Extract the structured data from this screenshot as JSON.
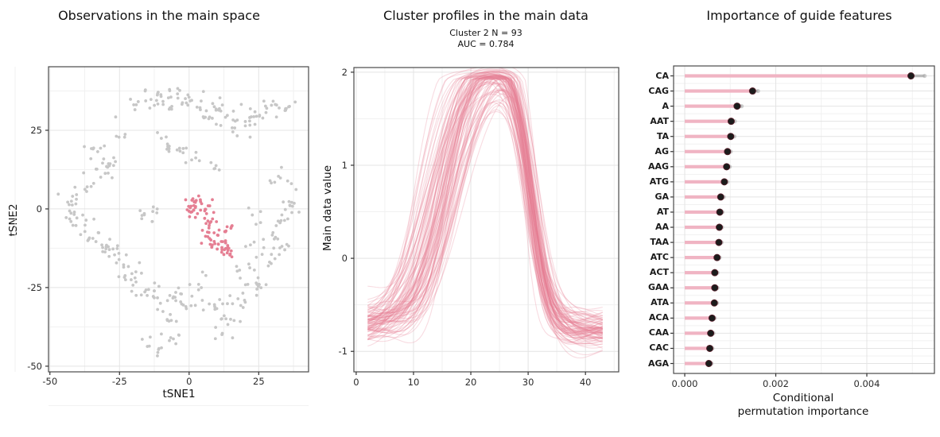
{
  "figure": {
    "background": "#ffffff",
    "accent_pink": "#e57f93",
    "muted_gray": "#c7c7c7",
    "grid_major": "#e4e4e4",
    "grid_minor": "#f1f1f1",
    "panel_border": "#4a4a4a",
    "dot_black": "#1c1c1c",
    "whisker_gray": "#a8a8a8",
    "bar_pink": "#f0b4c3"
  },
  "chart_data": [
    {
      "type": "scatter",
      "title": "Observations in the main space",
      "xlabel": "tSNE1",
      "ylabel": "tSNE2",
      "xlim": [
        -50.5,
        42.9
      ],
      "ylim": [
        -51.8,
        45.2
      ],
      "xticks": [
        -50,
        -25,
        0,
        25
      ],
      "yticks": [
        25,
        0,
        -25,
        -50
      ],
      "grid": "major+minor",
      "seed": 7,
      "n_highlight": 93,
      "point_color_base": "#c7c7c7",
      "point_color_highlight": "#e57f93",
      "base_clusters": [
        [
          -18,
          33,
          2.0,
          1.2,
          8
        ],
        [
          -13,
          36,
          2.2,
          1.3,
          10
        ],
        [
          -8,
          33,
          1.8,
          1.6,
          8
        ],
        [
          -4,
          37,
          2.0,
          1.4,
          8
        ],
        [
          1,
          34,
          2.2,
          1.8,
          10
        ],
        [
          6,
          30,
          2.2,
          2.0,
          10
        ],
        [
          11,
          32,
          2.2,
          1.8,
          10
        ],
        [
          16,
          29,
          2.2,
          2.0,
          10
        ],
        [
          21,
          27,
          2.0,
          2.0,
          8
        ],
        [
          26,
          30,
          2.2,
          1.6,
          9
        ],
        [
          31,
          33,
          2.4,
          1.2,
          9
        ],
        [
          36,
          32,
          1.8,
          1.4,
          7
        ],
        [
          -25,
          24,
          1.6,
          1.6,
          5
        ],
        [
          -8,
          22,
          1.8,
          1.6,
          6
        ],
        [
          -3,
          19,
          2.0,
          1.8,
          8
        ],
        [
          2,
          16,
          1.6,
          1.6,
          6
        ],
        [
          9,
          13,
          1.6,
          1.4,
          5
        ],
        [
          -33,
          18,
          2.2,
          2.2,
          11
        ],
        [
          -28,
          13,
          2.2,
          2.2,
          10
        ],
        [
          -34,
          9,
          1.8,
          1.8,
          7
        ],
        [
          -44,
          0,
          1.8,
          2.0,
          9
        ],
        [
          -40,
          -4,
          2.2,
          2.2,
          10
        ],
        [
          -36,
          -8,
          2.2,
          2.2,
          10
        ],
        [
          -31,
          -11,
          2.0,
          2.0,
          9
        ],
        [
          -39,
          4,
          1.6,
          1.6,
          6
        ],
        [
          -15,
          -1,
          1.8,
          2.2,
          11
        ],
        [
          -27,
          -14,
          2.0,
          2.0,
          9
        ],
        [
          -23,
          -18,
          2.0,
          2.0,
          9
        ],
        [
          -19,
          -22,
          2.0,
          2.0,
          9
        ],
        [
          -15,
          -26,
          2.0,
          2.0,
          8
        ],
        [
          -10,
          -29,
          2.2,
          2.2,
          10
        ],
        [
          -5,
          -27,
          1.8,
          1.8,
          7
        ],
        [
          -8,
          -34,
          1.8,
          1.8,
          7
        ],
        [
          -12,
          -43,
          2.2,
          1.8,
          10
        ],
        [
          -6,
          -42,
          1.6,
          1.6,
          6
        ],
        [
          0,
          -30,
          1.8,
          2.2,
          8
        ],
        [
          4,
          -25,
          1.8,
          1.8,
          7
        ],
        [
          9,
          -31,
          2.2,
          2.2,
          9
        ],
        [
          14,
          -35,
          1.8,
          1.8,
          7
        ],
        [
          11,
          -40,
          1.6,
          1.4,
          5
        ],
        [
          18,
          -29,
          2.2,
          1.8,
          9
        ],
        [
          23,
          -26,
          1.8,
          1.8,
          7
        ],
        [
          20,
          -19,
          1.8,
          1.8,
          7
        ],
        [
          26,
          -22,
          1.6,
          1.6,
          5
        ],
        [
          29,
          -16,
          1.8,
          1.8,
          7
        ],
        [
          34,
          -12,
          1.8,
          1.8,
          7
        ],
        [
          30,
          -8,
          1.8,
          1.8,
          7
        ],
        [
          34,
          -3,
          1.8,
          2.4,
          9
        ],
        [
          36,
          3,
          1.6,
          2.4,
          9
        ],
        [
          33,
          9,
          1.8,
          2.2,
          8
        ],
        [
          25,
          -3,
          1.4,
          1.8,
          5
        ],
        [
          22,
          -12,
          1.5,
          1.5,
          4
        ]
      ],
      "highlight_clusters": [
        [
          1,
          0,
          1.8,
          2.2,
          22
        ],
        [
          4,
          1,
          1.8,
          1.2,
          12
        ],
        [
          6,
          -4,
          1.6,
          2.0,
          13
        ],
        [
          8,
          -9,
          1.8,
          1.8,
          14
        ],
        [
          11,
          -12,
          2.2,
          1.6,
          16
        ],
        [
          14,
          -13,
          1.4,
          1.4,
          8
        ],
        [
          13,
          -7,
          1.2,
          1.2,
          5
        ],
        [
          16,
          -6,
          0.8,
          0.8,
          3
        ]
      ]
    },
    {
      "type": "line",
      "title": "Cluster profiles in the main data",
      "subtitle_line1": "Cluster 2 N = 93",
      "subtitle_line2": "AUC = 0.784",
      "xlabel": "",
      "ylabel": "Main data value",
      "xlim": [
        -0.4,
        45.8
      ],
      "ylim": [
        -1.22,
        2.05
      ],
      "xticks": [
        0,
        10,
        20,
        30,
        40
      ],
      "yticks": [
        2,
        1,
        0,
        -1
      ],
      "grid": "major+minor",
      "seed": 11,
      "n_lines": 93,
      "x_start": 2,
      "x_end": 43,
      "line_color": "#e57f95",
      "line_alpha": 0.28,
      "profile": {
        "base_start_mean": -0.72,
        "base_start_sd": 0.11,
        "base_end_mean": -0.76,
        "base_end_sd": 0.09,
        "peak_mean": 2.18,
        "peak_sd": 0.12,
        "rise_mid_mean": 14.8,
        "rise_mid_sd": 2.0,
        "rise_width_mean": 2.7,
        "rise_width_sd": 0.4,
        "fall_mid_mean": 30.4,
        "fall_mid_sd": 0.7,
        "fall_width_mean": 1.55,
        "fall_width_sd": 0.2,
        "noise_amp": 0.05,
        "peak_x_approx": 25.5,
        "peak_value_approx": 1.8
      }
    },
    {
      "type": "lollipop",
      "title": "Importance of guide features",
      "xlabel_line1": "Conditional",
      "xlabel_line2": "permutation importance",
      "xlim": [
        -0.000245,
        0.005485
      ],
      "xticks": [
        0.0,
        0.002,
        0.004
      ],
      "xtick_labels": [
        "0.000",
        "0.002",
        "0.004"
      ],
      "grid": "major+minor",
      "features": [
        "CA",
        "CAG",
        "A",
        "AAT",
        "TA",
        "AG",
        "AAG",
        "ATG",
        "GA",
        "AT",
        "AA",
        "TAA",
        "ATC",
        "ACT",
        "GAA",
        "ATA",
        "ACA",
        "CAA",
        "CAC",
        "AGA"
      ],
      "values": [
        0.00497,
        0.00149,
        0.00115,
        0.00102,
        0.00101,
        0.00094,
        0.00092,
        0.00087,
        0.00079,
        0.00077,
        0.00076,
        0.00075,
        0.00071,
        0.00066,
        0.00066,
        0.00065,
        0.0006,
        0.00057,
        0.00055,
        0.00053
      ],
      "whisker_lo": [
        0.00475,
        0.00141,
        0.00108,
        0.00096,
        0.00095,
        0.00088,
        0.00086,
        0.00081,
        0.00074,
        0.00072,
        0.00071,
        0.0007,
        0.00066,
        0.00061,
        0.00061,
        0.0006,
        0.00055,
        0.00052,
        0.0005,
        0.00048
      ],
      "whisker_hi": [
        0.00527,
        0.00161,
        0.00125,
        0.0011,
        0.00109,
        0.00101,
        0.00099,
        0.00094,
        0.00086,
        0.00083,
        0.00082,
        0.00081,
        0.00077,
        0.00072,
        0.00072,
        0.00071,
        0.00066,
        0.00063,
        0.00061,
        0.00059
      ],
      "bar_color": "#f0b4c3",
      "dot_color": "#1c1c1c",
      "whisker_color": "#a8a8a8"
    }
  ]
}
